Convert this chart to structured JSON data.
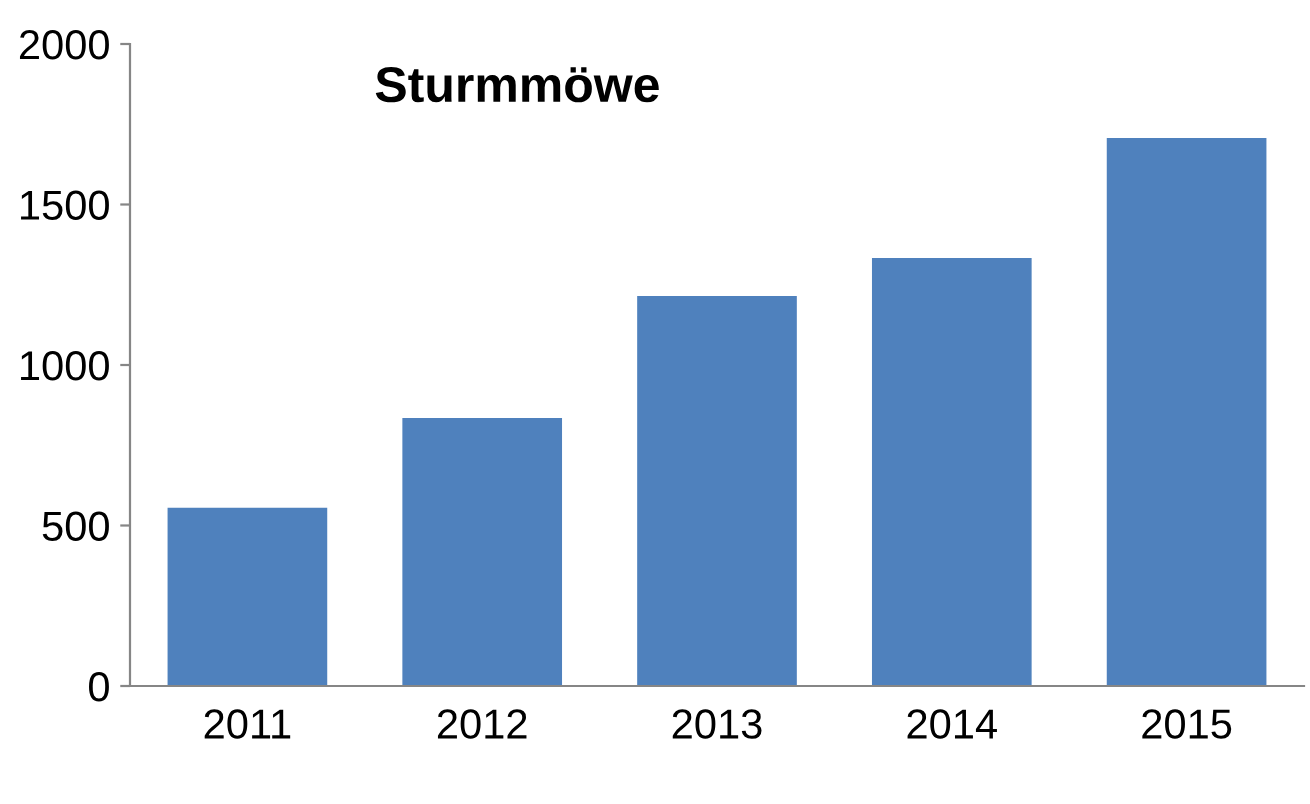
{
  "chart_data": {
    "type": "bar",
    "title": "Sturmmöwe",
    "categories": [
      "2011",
      "2012",
      "2013",
      "2014",
      "2015"
    ],
    "values": [
      555,
      835,
      1215,
      1333,
      1707
    ],
    "color": "#4f81bd",
    "ylim": [
      0,
      2000
    ],
    "yticks": [
      0,
      500,
      1000,
      1500,
      2000
    ],
    "grid": false
  }
}
